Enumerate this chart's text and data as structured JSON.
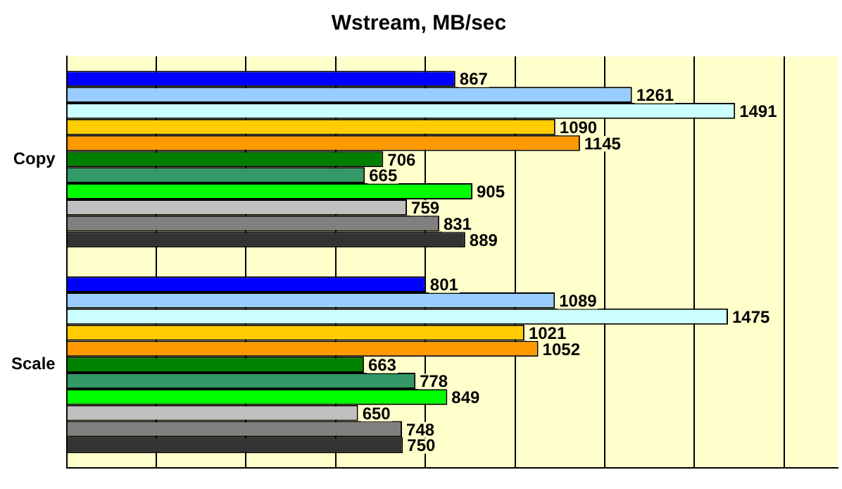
{
  "chart_data": {
    "type": "bar",
    "orientation": "horizontal",
    "title": "Wstream, MB/sec",
    "categories": [
      "Copy",
      "Scale"
    ],
    "series": [
      {
        "color": "#0000ff",
        "values": [
          867,
          801
        ]
      },
      {
        "color": "#99ccff",
        "values": [
          1261,
          1089
        ]
      },
      {
        "color": "#ccffff",
        "values": [
          1491,
          1475
        ]
      },
      {
        "color": "#ffcc00",
        "values": [
          1090,
          1021
        ]
      },
      {
        "color": "#ff9900",
        "values": [
          1145,
          1052
        ]
      },
      {
        "color": "#008000",
        "values": [
          706,
          663
        ]
      },
      {
        "color": "#339966",
        "values": [
          665,
          778
        ]
      },
      {
        "color": "#00ff00",
        "values": [
          905,
          849
        ]
      },
      {
        "color": "#c0c0c0",
        "values": [
          759,
          650
        ]
      },
      {
        "color": "#808080",
        "values": [
          831,
          748
        ]
      },
      {
        "color": "#333333",
        "values": [
          889,
          750
        ]
      }
    ],
    "xlim": [
      0,
      1720
    ],
    "xticks": [
      {
        "value": 0,
        "label": null
      },
      {
        "value": 200,
        "label": null
      },
      {
        "value": 400,
        "label": null
      },
      {
        "value": 600,
        "label": null
      },
      {
        "value": 800,
        "label": null
      },
      {
        "value": 1000,
        "label": null
      },
      {
        "value": 1200,
        "label": null
      },
      {
        "value": 1400,
        "label": null
      },
      {
        "value": 1600,
        "label": null
      }
    ],
    "grid": "x",
    "tick_labels": "y",
    "data_labels": true,
    "legend": false
  }
}
